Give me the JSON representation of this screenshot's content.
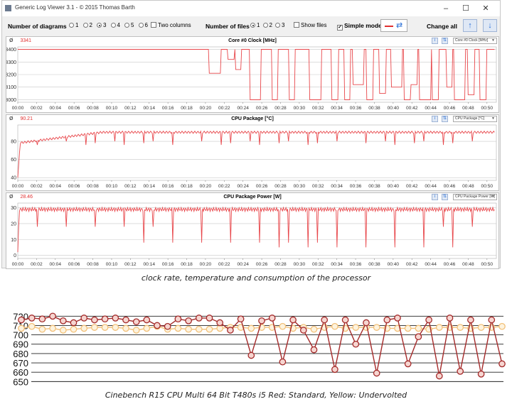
{
  "window": {
    "title": "Generic Log Viewer 3.1 - © 2015 Thomas Barth",
    "minimize_glyph": "–",
    "maximize_glyph": "☐",
    "close_glyph": "✕"
  },
  "toolbar": {
    "diagrams_label": "Number of diagrams",
    "diagram_options": [
      "1",
      "2",
      "3",
      "4",
      "5",
      "6"
    ],
    "diagram_selected": "3",
    "two_columns_label": "Two columns",
    "files_label": "Number of files",
    "file_options": [
      "1",
      "2",
      "3"
    ],
    "file_selected": "1",
    "show_files_label": "Show files",
    "simple_mode_label": "Simple mode",
    "simple_mode_checked": true,
    "change_all_label": "Change all",
    "icons": [
      "swap-arrows-icon",
      "arrow-up-icon",
      "arrow-down-icon"
    ]
  },
  "time_ticks": [
    "00:00",
    "00:02",
    "00:04",
    "00:06",
    "00:08",
    "00:10",
    "00:12",
    "00:14",
    "00:16",
    "00:18",
    "00:20",
    "00:22",
    "00:24",
    "00:26",
    "00:28",
    "00:30",
    "00:32",
    "00:34",
    "00:36",
    "00:38",
    "00:40",
    "00:42",
    "00:44",
    "00:46",
    "00:48",
    "00:50"
  ],
  "panels": [
    {
      "current_symbol": "Ø",
      "current_value": "3341",
      "title": "Core #0 Clock [MHz]",
      "selector": "Core #0 Clock [MHz]",
      "y_ticks": [
        "3400",
        "3300",
        "3200",
        "3100",
        "3000"
      ]
    },
    {
      "current_symbol": "Ø",
      "current_value": "90.21",
      "title": "CPU Package [°C]",
      "selector": "CPU Package [°C]",
      "y_ticks": [
        "80",
        "60",
        "40"
      ]
    },
    {
      "current_symbol": "Ø",
      "current_value": "28.46",
      "title": "CPU Package Power [W]",
      "selector": "CPU Package Power [W]",
      "y_ticks": [
        "30",
        "20",
        "10",
        "0"
      ]
    }
  ],
  "captions": {
    "log_viewer": "clock rate, temperature and consumption of the processor",
    "cinebench": "Cinebench R15 CPU Multi 64 Bit T480s i5 Red: Standard, Yellow: Undervolted"
  },
  "colors": {
    "trace": "#e8474b",
    "standard": "#a42a2a",
    "undervolted": "#f2c079"
  },
  "chart_data": [
    {
      "type": "line",
      "title": "Core #0 Clock [MHz]",
      "x_unit": "mm:ss",
      "ylim": [
        2980,
        3420
      ],
      "series": [
        {
          "name": "Core #0 Clock [MHz]",
          "baseline": 3400,
          "dips_at_minutes": [
            21.0,
            22.7,
            23.5,
            25.3,
            27.4,
            29.2,
            31.7,
            33.8,
            35.1,
            36.3,
            37.5,
            38.9,
            40.4,
            41.5,
            42.2,
            43.4,
            44.5,
            46.0,
            47.1,
            48.3,
            49.6
          ],
          "dip_values": [
            3210,
            3320,
            3240,
            3000,
            3000,
            3000,
            3000,
            3000,
            3000,
            3120,
            3000,
            3050,
            3100,
            3000,
            3120,
            3000,
            3000,
            3100,
            3000,
            3040,
            3000
          ]
        }
      ]
    },
    {
      "type": "line",
      "title": "CPU Package [°C]",
      "x_unit": "mm:ss",
      "ylim": [
        37,
        98
      ],
      "series": [
        {
          "name": "CPU Package [°C]",
          "start_value": 40,
          "plateau_value": 90,
          "recurring_dip_value": 80
        }
      ]
    },
    {
      "type": "line",
      "title": "CPU Package Power [W]",
      "x_unit": "mm:ss",
      "ylim": [
        -2,
        33
      ],
      "series": [
        {
          "name": "CPU Package Power [W]",
          "start_value": 2,
          "plateau_value": 29,
          "recurring_dip_values": [
            5,
            8,
            18
          ]
        }
      ]
    },
    {
      "type": "line",
      "title": "Cinebench R15 CPU Multi 64 Bit T480s i5",
      "y_ticks": [
        720,
        710,
        700,
        690,
        680,
        670,
        660,
        650
      ],
      "ylim": [
        648,
        724
      ],
      "series": [
        {
          "name": "Red: Standard",
          "values": [
            716,
            718,
            717,
            720,
            715,
            713,
            718,
            716,
            717,
            718,
            716,
            714,
            716,
            710,
            709,
            717,
            715,
            718,
            718,
            713,
            705,
            717,
            678,
            715,
            718,
            671,
            716,
            705,
            684,
            716,
            663,
            716,
            690,
            713,
            659,
            716,
            718,
            669,
            698,
            716,
            656,
            718,
            661,
            716,
            658,
            716,
            669
          ]
        },
        {
          "name": "Yellow: Undervolted",
          "values": [
            707,
            709,
            706,
            707,
            705,
            706,
            707,
            708,
            708,
            708,
            707,
            705,
            707,
            709,
            706,
            707,
            706,
            706,
            706,
            707,
            708,
            708,
            707,
            708,
            708,
            709,
            707,
            708,
            706,
            708,
            709,
            707,
            708,
            708,
            708,
            707,
            707,
            707,
            707,
            706,
            708,
            708,
            708,
            707,
            708,
            708,
            709
          ]
        }
      ]
    }
  ]
}
